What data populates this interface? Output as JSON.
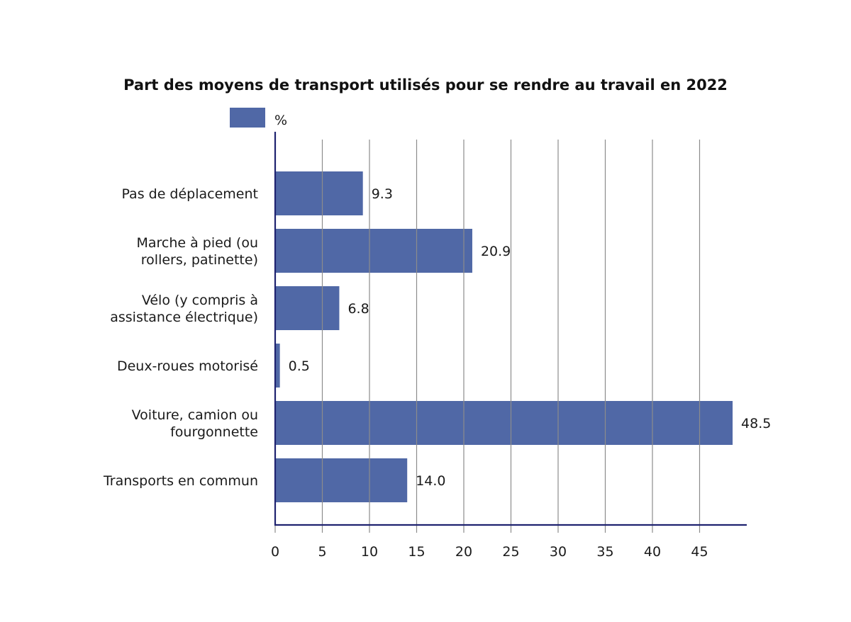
{
  "chart_data": {
    "type": "bar",
    "orientation": "horizontal",
    "title": "Part des moyens de transport utilisés pour se rendre au travail en 2022",
    "categories": [
      [
        "Pas de déplacement"
      ],
      [
        "Marche à pied (ou",
        "rollers, patinette)"
      ],
      [
        "Vélo (y compris à",
        "assistance électrique)"
      ],
      [
        "Deux-roues motorisé"
      ],
      [
        "Voiture, camion ou",
        "fourgonnette"
      ],
      [
        "Transports en commun"
      ]
    ],
    "series": [
      {
        "name": "%",
        "values": [
          9.3,
          20.9,
          6.8,
          0.5,
          48.5,
          14.0
        ],
        "value_labels": [
          "9.3",
          "20.9",
          "6.8",
          "0.5",
          "48.5",
          "14.0"
        ],
        "color": "#5068a6"
      }
    ],
    "xlabel": "",
    "ylabel": "",
    "xlim": [
      0,
      50
    ],
    "xticks": [
      0,
      5,
      10,
      15,
      20,
      25,
      30,
      35,
      40,
      45
    ],
    "grid": "vertical",
    "legend": "top-left",
    "colors": {
      "bar": "#5068a6",
      "axis": "#1f2370",
      "grid": "#8c8c8c"
    }
  }
}
